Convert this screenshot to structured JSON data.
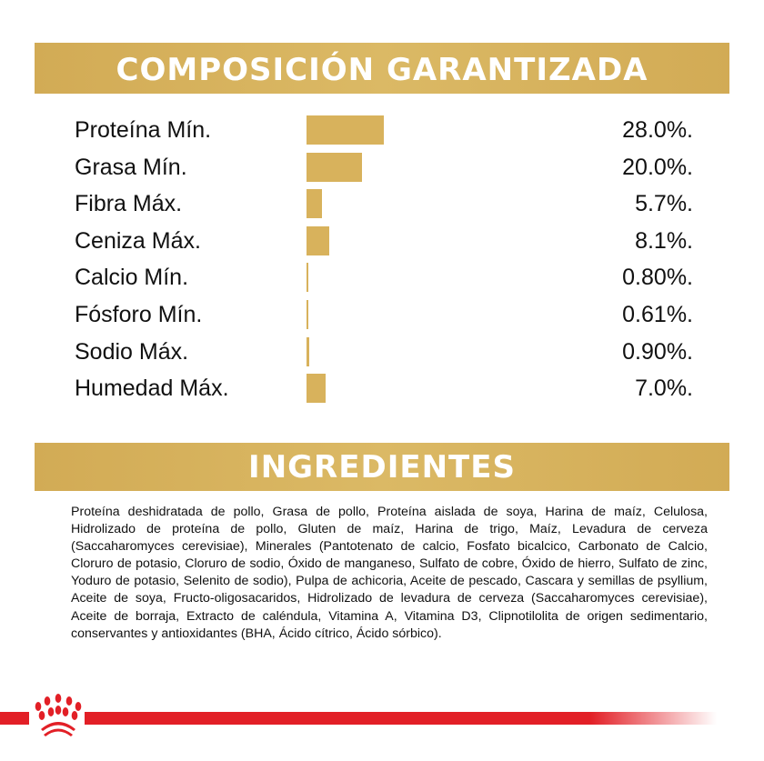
{
  "composition": {
    "title": "COMPOSICIÓN GARANTIZADA",
    "bar_color": "#d8b25c",
    "rows": [
      {
        "label": "Proteína Mín.",
        "value": 28.0,
        "text": "28.0%."
      },
      {
        "label": "Grasa Mín.",
        "value": 20.0,
        "text": "20.0%."
      },
      {
        "label": "Fibra Máx.",
        "value": 5.7,
        "text": "5.7%."
      },
      {
        "label": "Ceniza Máx.",
        "value": 8.1,
        "text": "8.1%."
      },
      {
        "label": "Calcio Mín.",
        "value": 0.8,
        "text": "0.80%."
      },
      {
        "label": "Fósforo Mín.",
        "value": 0.61,
        "text": "0.61%."
      },
      {
        "label": "Sodio Máx.",
        "value": 0.9,
        "text": "0.90%."
      },
      {
        "label": "Humedad Máx.",
        "value": 7.0,
        "text": "7.0%."
      }
    ]
  },
  "ingredients": {
    "title": "INGREDIENTES",
    "text": "Proteína deshidratada de pollo, Grasa de pollo, Proteína aislada de soya, Harina de maíz, Celulosa, Hidrolizado de proteína de pollo, Gluten de maíz, Harina de trigo, Maíz, Levadura de cerveza (Saccaharomyces cerevisiae), Minerales (Pantotenato de calcio, Fosfato bicalcico, Carbonato de Calcio, Cloruro de potasio, Cloruro de sodio, Óxido de manganeso, Sulfato de cobre, Óxido de hierro, Sulfato de zinc, Yoduro de potasio, Selenito de sodio), Pulpa de achicoria, Aceite de pescado, Cascara y semillas de psyllium, Aceite de soya, Fructo-oligosacaridos, Hidrolizado de levadura de cerveza (Saccaharomyces cerevisiae), Aceite de borraja, Extracto de caléndula, Vitamina A, Vitamina D3, Clipnotilolita de origen sedimentario, conservantes y antioxidantes (BHA, Ácido cítrico, Ácido sórbico)."
  },
  "brand": {
    "logo_icon": "royal-canin-crown-icon",
    "color": "#e21f26"
  }
}
